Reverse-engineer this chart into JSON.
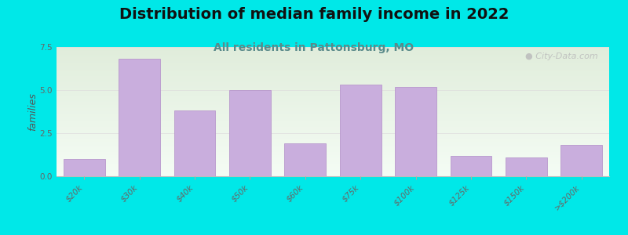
{
  "title": "Distribution of median family income in 2022",
  "subtitle": "All residents in Pattonsburg, MO",
  "categories": [
    "$20k",
    "$30k",
    "$40k",
    "$50k",
    "$60k",
    "$75k",
    "$100k",
    "$125k",
    "$150k",
    ">$200k"
  ],
  "values": [
    1.0,
    6.8,
    3.8,
    5.0,
    1.9,
    5.3,
    5.2,
    1.2,
    1.1,
    1.8
  ],
  "bar_color": "#c9aedd",
  "bar_edgecolor": "#b898cc",
  "background_color": "#00e8e8",
  "ylabel": "families",
  "ylim": [
    0,
    7.5
  ],
  "yticks": [
    0,
    2.5,
    5,
    7.5
  ],
  "watermark": "City-Data.com",
  "title_fontsize": 14,
  "subtitle_fontsize": 10,
  "tick_fontsize": 7.5
}
